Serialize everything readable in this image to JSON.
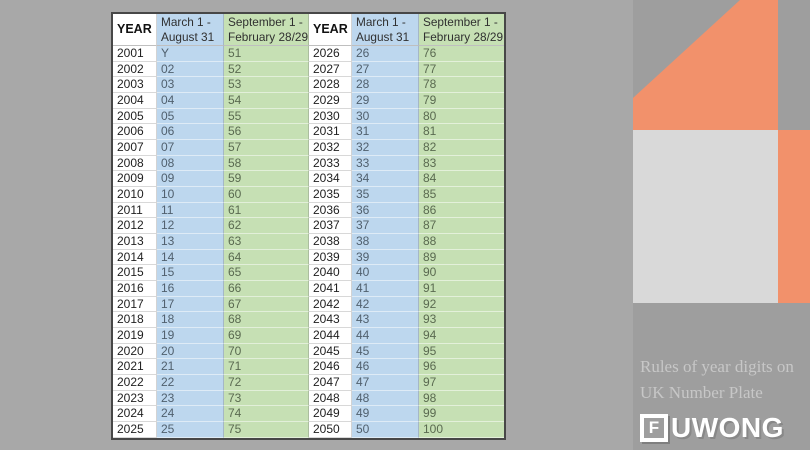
{
  "table": {
    "header": {
      "year": "YEAR",
      "march_line1": "March 1 -",
      "march_line2": "August 31",
      "sep_line1": "September 1 -",
      "sep_line2": "February 28/29"
    }
  },
  "side_panel": {
    "caption_line1": "Rules of year digits on",
    "caption_line2": "UK Number Plate",
    "logo_f": "F",
    "logo_rest": "UWONG"
  },
  "colors": {
    "orange": "#F2916B",
    "light_gray_block": "#D9D9D9",
    "background": "#A8A8A8",
    "panel_gray": "#9E9E9E",
    "march_column": "#BDD7EE",
    "september_column": "#C6E0B4"
  },
  "chart_data": {
    "type": "table",
    "title": "Rules of year digits on UK Number Plate",
    "columns": [
      "YEAR",
      "March 1 - August 31",
      "September 1 - February 28/29",
      "YEAR",
      "March 1 - August 31",
      "September 1 - February 28/29"
    ],
    "rows": [
      [
        "2001",
        "Y",
        "51",
        "2026",
        "26",
        "76"
      ],
      [
        "2002",
        "02",
        "52",
        "2027",
        "27",
        "77"
      ],
      [
        "2003",
        "03",
        "53",
        "2028",
        "28",
        "78"
      ],
      [
        "2004",
        "04",
        "54",
        "2029",
        "29",
        "79"
      ],
      [
        "2005",
        "05",
        "55",
        "2030",
        "30",
        "80"
      ],
      [
        "2006",
        "06",
        "56",
        "2031",
        "31",
        "81"
      ],
      [
        "2007",
        "07",
        "57",
        "2032",
        "32",
        "82"
      ],
      [
        "2008",
        "08",
        "58",
        "2033",
        "33",
        "83"
      ],
      [
        "2009",
        "09",
        "59",
        "2034",
        "34",
        "84"
      ],
      [
        "2010",
        "10",
        "60",
        "2035",
        "35",
        "85"
      ],
      [
        "2011",
        "11",
        "61",
        "2036",
        "36",
        "86"
      ],
      [
        "2012",
        "12",
        "62",
        "2037",
        "37",
        "87"
      ],
      [
        "2013",
        "13",
        "63",
        "2038",
        "38",
        "88"
      ],
      [
        "2014",
        "14",
        "64",
        "2039",
        "39",
        "89"
      ],
      [
        "2015",
        "15",
        "65",
        "2040",
        "40",
        "90"
      ],
      [
        "2016",
        "16",
        "66",
        "2041",
        "41",
        "91"
      ],
      [
        "2017",
        "17",
        "67",
        "2042",
        "42",
        "92"
      ],
      [
        "2018",
        "18",
        "68",
        "2043",
        "43",
        "93"
      ],
      [
        "2019",
        "19",
        "69",
        "2044",
        "44",
        "94"
      ],
      [
        "2020",
        "20",
        "70",
        "2045",
        "45",
        "95"
      ],
      [
        "2021",
        "21",
        "71",
        "2046",
        "46",
        "96"
      ],
      [
        "2022",
        "22",
        "72",
        "2047",
        "47",
        "97"
      ],
      [
        "2023",
        "23",
        "73",
        "2048",
        "48",
        "98"
      ],
      [
        "2024",
        "24",
        "74",
        "2049",
        "49",
        "99"
      ],
      [
        "2025",
        "25",
        "75",
        "2050",
        "50",
        "100"
      ]
    ]
  }
}
